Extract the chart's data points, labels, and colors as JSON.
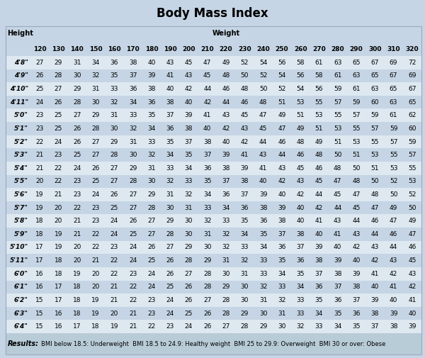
{
  "title": "Body Mass Index",
  "bg_color": "#c5d5e5",
  "row_alt1": "#dde8f0",
  "row_alt2": "#c5d5e5",
  "footer_bg": "#b8ccd8",
  "weights": [
    120,
    130,
    140,
    150,
    160,
    170,
    180,
    190,
    200,
    210,
    220,
    230,
    240,
    250,
    260,
    270,
    280,
    290,
    300,
    310,
    320
  ],
  "heights": [
    "4'8\"",
    "4'9\"",
    "4'10\"",
    "4'11\"",
    "5'0\"",
    "5'1\"",
    "5'2\"",
    "5'3\"",
    "5'4\"",
    "5'5\"",
    "5'6\"",
    "5'7\"",
    "5'8\"",
    "5'9\"",
    "5'10\"",
    "5'11\"",
    "6'0\"",
    "6'1\"",
    "6'2\"",
    "6'3\"",
    "6'4\""
  ],
  "bmi_data": [
    [
      27,
      29,
      31,
      34,
      36,
      38,
      40,
      43,
      45,
      47,
      49,
      52,
      54,
      56,
      58,
      61,
      63,
      65,
      67,
      69,
      72
    ],
    [
      26,
      28,
      30,
      32,
      35,
      37,
      39,
      41,
      43,
      45,
      48,
      50,
      52,
      54,
      56,
      58,
      61,
      63,
      65,
      67,
      69
    ],
    [
      25,
      27,
      29,
      31,
      33,
      36,
      38,
      40,
      42,
      44,
      46,
      48,
      50,
      52,
      54,
      56,
      59,
      61,
      63,
      65,
      67
    ],
    [
      24,
      26,
      28,
      30,
      32,
      34,
      36,
      38,
      40,
      42,
      44,
      46,
      48,
      51,
      53,
      55,
      57,
      59,
      60,
      63,
      65
    ],
    [
      23,
      25,
      27,
      29,
      31,
      33,
      35,
      37,
      39,
      41,
      43,
      45,
      47,
      49,
      51,
      53,
      55,
      57,
      59,
      61,
      62
    ],
    [
      23,
      25,
      26,
      28,
      30,
      32,
      34,
      36,
      38,
      40,
      42,
      43,
      45,
      47,
      49,
      51,
      53,
      55,
      57,
      59,
      60
    ],
    [
      22,
      24,
      26,
      27,
      29,
      31,
      33,
      35,
      37,
      38,
      40,
      42,
      44,
      46,
      48,
      49,
      51,
      53,
      55,
      57,
      59
    ],
    [
      21,
      23,
      25,
      27,
      28,
      30,
      32,
      34,
      35,
      37,
      39,
      41,
      43,
      44,
      46,
      48,
      50,
      51,
      53,
      55,
      57
    ],
    [
      21,
      22,
      24,
      26,
      27,
      29,
      31,
      33,
      34,
      36,
      38,
      39,
      41,
      43,
      45,
      46,
      48,
      50,
      51,
      53,
      55
    ],
    [
      20,
      22,
      23,
      25,
      27,
      28,
      30,
      32,
      33,
      35,
      37,
      38,
      40,
      42,
      43,
      45,
      47,
      48,
      50,
      52,
      53
    ],
    [
      19,
      21,
      23,
      24,
      26,
      27,
      29,
      31,
      32,
      34,
      36,
      37,
      39,
      40,
      42,
      44,
      45,
      47,
      48,
      50,
      52
    ],
    [
      19,
      20,
      22,
      23,
      25,
      27,
      28,
      30,
      31,
      33,
      34,
      36,
      38,
      39,
      40,
      42,
      44,
      45,
      47,
      49,
      50
    ],
    [
      18,
      20,
      21,
      23,
      24,
      26,
      27,
      29,
      30,
      32,
      33,
      35,
      36,
      38,
      40,
      41,
      43,
      44,
      46,
      47,
      49
    ],
    [
      18,
      19,
      21,
      22,
      24,
      25,
      27,
      28,
      30,
      31,
      32,
      34,
      35,
      37,
      38,
      40,
      41,
      43,
      44,
      46,
      47
    ],
    [
      17,
      19,
      20,
      22,
      23,
      24,
      26,
      27,
      29,
      30,
      32,
      33,
      34,
      36,
      37,
      39,
      40,
      42,
      43,
      44,
      46
    ],
    [
      17,
      18,
      20,
      21,
      22,
      24,
      25,
      26,
      28,
      29,
      31,
      32,
      33,
      35,
      36,
      38,
      39,
      40,
      42,
      43,
      45
    ],
    [
      16,
      18,
      19,
      20,
      22,
      23,
      24,
      26,
      27,
      28,
      30,
      31,
      33,
      34,
      35,
      37,
      38,
      39,
      41,
      42,
      43
    ],
    [
      16,
      17,
      18,
      20,
      21,
      22,
      24,
      25,
      26,
      28,
      29,
      30,
      32,
      33,
      34,
      36,
      37,
      38,
      40,
      41,
      42
    ],
    [
      15,
      17,
      18,
      19,
      21,
      22,
      23,
      24,
      26,
      27,
      28,
      30,
      31,
      32,
      33,
      35,
      36,
      37,
      39,
      40,
      41
    ],
    [
      15,
      16,
      18,
      19,
      20,
      21,
      23,
      24,
      25,
      26,
      28,
      29,
      30,
      31,
      33,
      34,
      35,
      36,
      38,
      39,
      40
    ],
    [
      15,
      16,
      17,
      18,
      19,
      21,
      22,
      23,
      24,
      26,
      27,
      28,
      29,
      30,
      32,
      33,
      34,
      35,
      37,
      38,
      39
    ]
  ],
  "results_label": "Results:",
  "footer_parts": [
    "BMI below 18.5: Underweight",
    "BMI 18.5 to 24.9: Healthy weight",
    "BMI 25 to 29.9: Overweight",
    "BMI 30 or over: Obese"
  ]
}
